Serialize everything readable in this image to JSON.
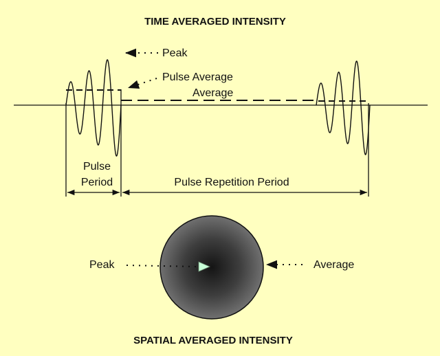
{
  "time_section": {
    "title": "TIME AVERAGED INTENSITY",
    "labels": {
      "peak": "Peak",
      "pulse_average": "Pulse Average",
      "average": "Average",
      "pulse_line1": "Pulse",
      "pulse_line2": "Period",
      "pulse_repetition_period": "Pulse Repetition Period"
    }
  },
  "spatial_section": {
    "title": "SPATIAL AVERAGED INTENSITY",
    "labels": {
      "peak": "Peak",
      "average": "Average"
    }
  },
  "colors": {
    "background": "#ffffc0",
    "ink": "#111111",
    "peak_arrow": "#c8ffd8",
    "beam_center": "#141414",
    "beam_edge": "#707070"
  }
}
